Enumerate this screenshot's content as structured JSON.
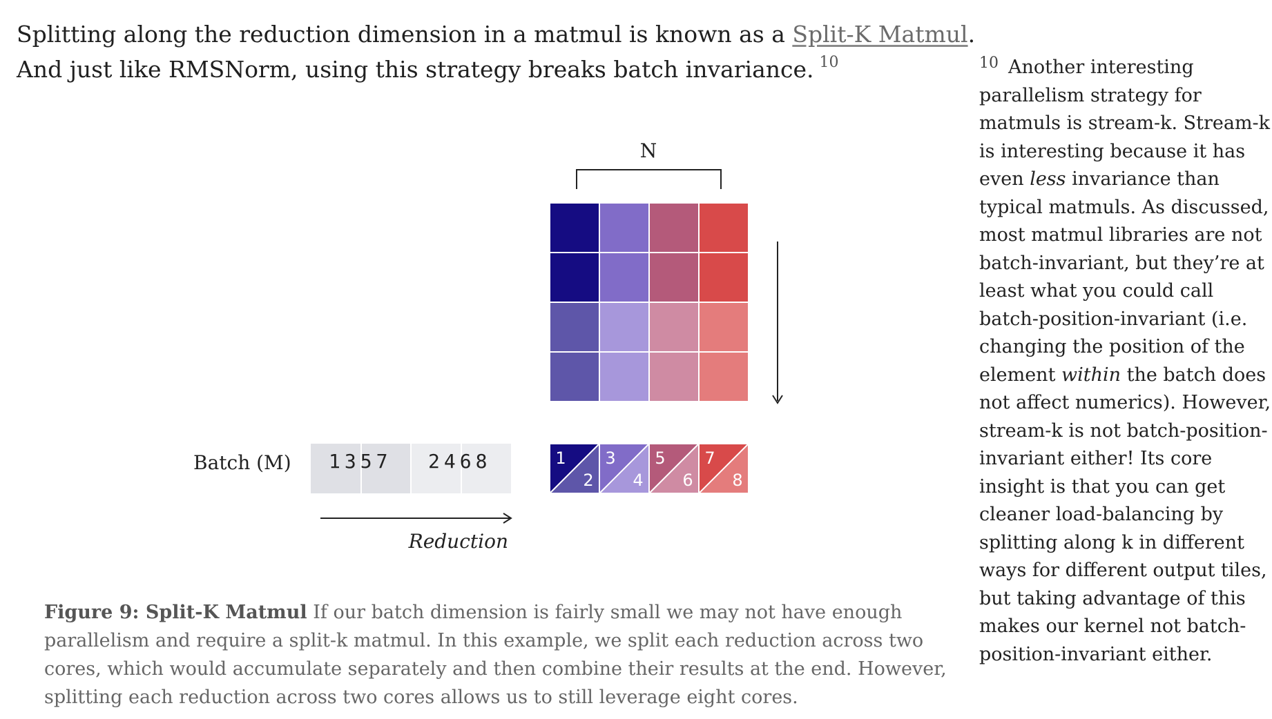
{
  "main_text": {
    "line1_before": "Splitting along the reduction dimension in a matmul is known as a ",
    "link": "Split-K Matmul",
    "line1_after": ".",
    "line2": "And just like RMSNorm, using this strategy breaks batch invariance.",
    "footnote_ref": "10"
  },
  "sidenote": {
    "number": "10",
    "lines": [
      "Another interesting",
      "parallelism strategy for",
      "matmuls is stream-k. Stream-k",
      "is interesting because it has"
    ],
    "line5_before": "even ",
    "line5_em": "less",
    "line5_after": " invariance than",
    "lines_b": [
      "typical matmuls. As discussed,",
      "most matmul libraries are not",
      "batch-invariant, but they’re at",
      "least what you could call",
      "batch-position-invariant (i.e.",
      "changing the position of the"
    ],
    "line12_before": "element ",
    "line12_em": "within",
    "line12_after": " the batch does",
    "lines_c": [
      "not affect numerics). However,",
      "stream-k is not batch-position-",
      "invariant either! Its core",
      "insight is that you can get",
      "cleaner load-balancing by",
      "splitting along k in different",
      "ways for different output tiles,",
      "but taking advantage of this",
      "makes our kernel not batch-",
      "position-invariant either."
    ]
  },
  "figure": {
    "n_label": "N",
    "batch_label": "Batch (M)",
    "batch_group1": "1357",
    "batch_group2": "2468",
    "reduction_label": "Reduction",
    "grid_colors": [
      [
        "#150c82",
        "#816cc8",
        "#b45a7a",
        "#d84a4a"
      ],
      [
        "#150c82",
        "#816cc8",
        "#b45a7a",
        "#d84a4a"
      ],
      [
        "#5e56a9",
        "#a797db",
        "#cf8ba3",
        "#e47c7c"
      ],
      [
        "#5e56a9",
        "#a797db",
        "#cf8ba3",
        "#e47c7c"
      ]
    ],
    "split_tiles": [
      {
        "top": "1",
        "bottom": "2",
        "dark": "#150c82",
        "light": "#5e56a9"
      },
      {
        "top": "3",
        "bottom": "4",
        "dark": "#816cc8",
        "light": "#a797db"
      },
      {
        "top": "5",
        "bottom": "6",
        "dark": "#b45a7a",
        "light": "#cf8ba3"
      },
      {
        "top": "7",
        "bottom": "8",
        "dark": "#d84a4a",
        "light": "#e47c7c"
      }
    ],
    "batch_cell_colors": [
      "#dfe0e5",
      "#ecedf0"
    ]
  },
  "caption": {
    "label": "Figure 9: Split-K Matmul",
    "line1_rest": " If our batch dimension is fairly small we may not have enough",
    "lines": [
      "parallelism and require a split-k matmul. In this example, we split each reduction across two",
      "cores, which would accumulate separately and then combine their results at the end. However,",
      "splitting each reduction across two cores allows us to still leverage eight cores."
    ]
  }
}
